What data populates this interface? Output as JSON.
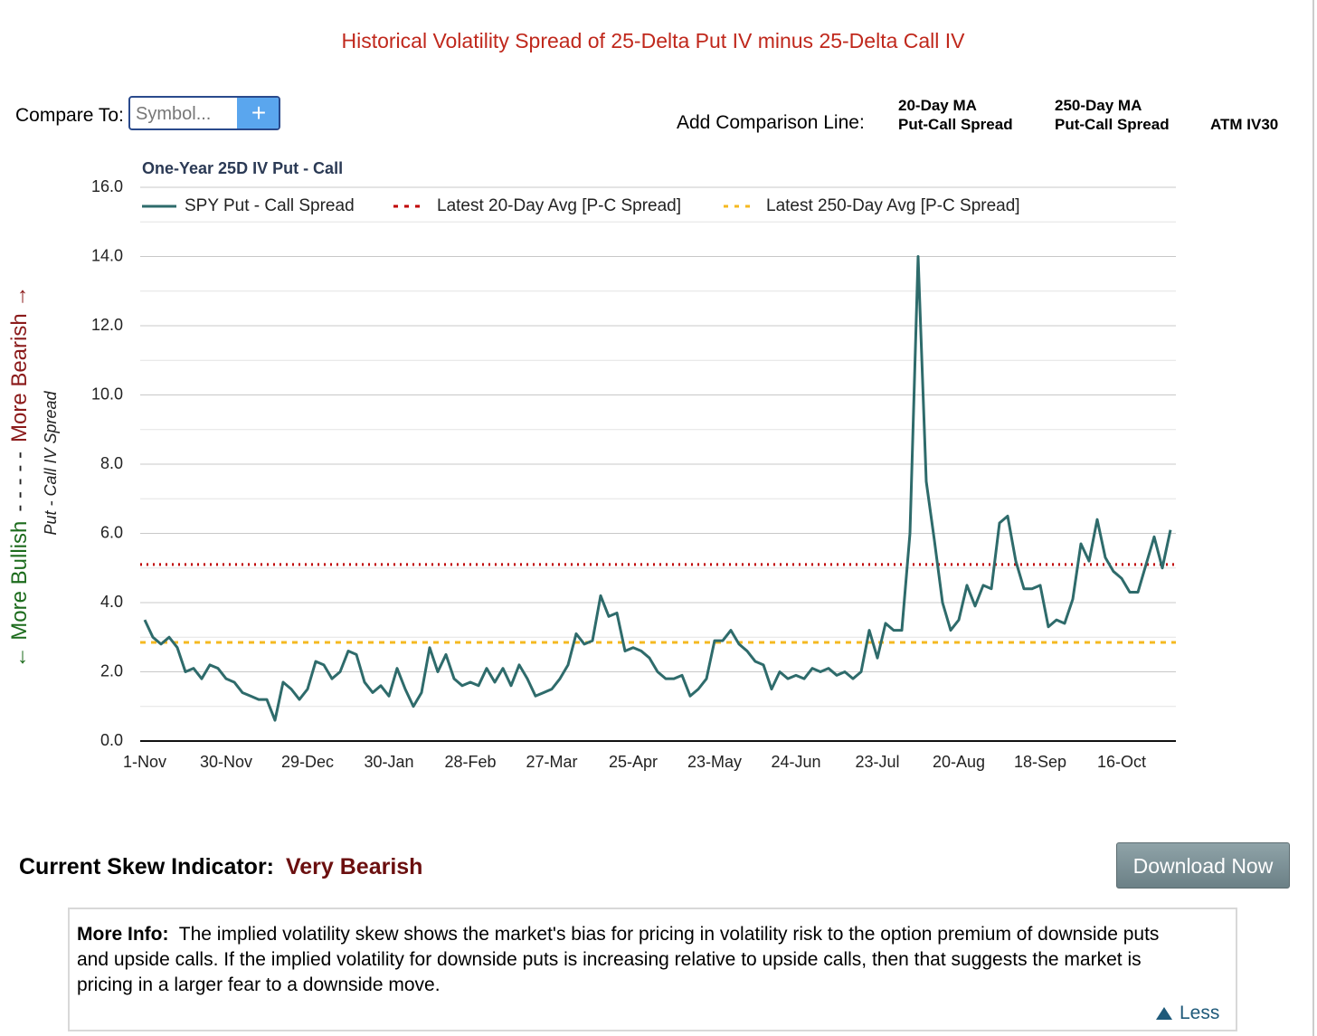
{
  "header": {
    "title": "Historical Volatility Spread of 25-Delta Put IV minus 25-Delta Call IV"
  },
  "controls": {
    "compare_label": "Compare To:",
    "symbol_placeholder": "Symbol...",
    "add_button": "+",
    "comparison_label": "Add Comparison Line:",
    "options": [
      [
        "20-Day MA",
        "Put-Call Spread"
      ],
      [
        "250-Day MA",
        "Put-Call Spread"
      ],
      [
        "ATM IV30"
      ]
    ]
  },
  "chart_data": {
    "type": "line",
    "subtitle": "One-Year 25D IV Put - Call",
    "y_label": "Put - Call IV Spread",
    "side_label": {
      "bullish": "← More Bullish",
      "dashes": "- - - - -",
      "bearish": "More Bearish →"
    },
    "categories": [
      "1-Nov",
      null,
      null,
      null,
      null,
      null,
      null,
      null,
      null,
      null,
      "30-Nov",
      null,
      null,
      null,
      null,
      null,
      null,
      null,
      null,
      null,
      "29-Dec",
      null,
      null,
      null,
      null,
      null,
      null,
      null,
      null,
      null,
      "30-Jan",
      null,
      null,
      null,
      null,
      null,
      null,
      null,
      null,
      null,
      "28-Feb",
      null,
      null,
      null,
      null,
      null,
      null,
      null,
      null,
      null,
      "27-Mar",
      null,
      null,
      null,
      null,
      null,
      null,
      null,
      null,
      null,
      "25-Apr",
      null,
      null,
      null,
      null,
      null,
      null,
      null,
      null,
      null,
      "23-May",
      null,
      null,
      null,
      null,
      null,
      null,
      null,
      null,
      null,
      "24-Jun",
      null,
      null,
      null,
      null,
      null,
      null,
      null,
      null,
      null,
      "23-Jul",
      null,
      null,
      null,
      null,
      null,
      null,
      null,
      null,
      null,
      "20-Aug",
      null,
      null,
      null,
      null,
      null,
      null,
      null,
      null,
      null,
      "18-Sep",
      null,
      null,
      null,
      null,
      null,
      null,
      null,
      null,
      null,
      "16-Oct",
      null,
      null,
      null,
      null,
      null,
      null
    ],
    "series": [
      {
        "name": "SPY Put - Call Spread",
        "color": "#2e6b6b",
        "values": [
          3.5,
          3.0,
          2.8,
          3.0,
          2.7,
          2.0,
          2.1,
          1.8,
          2.2,
          2.1,
          1.8,
          1.7,
          1.4,
          1.3,
          1.2,
          1.2,
          0.6,
          1.7,
          1.5,
          1.2,
          1.5,
          2.3,
          2.2,
          1.8,
          2.0,
          2.6,
          2.5,
          1.7,
          1.4,
          1.6,
          1.3,
          2.1,
          1.5,
          1.0,
          1.4,
          2.7,
          2.0,
          2.5,
          1.8,
          1.6,
          1.7,
          1.6,
          2.1,
          1.7,
          2.1,
          1.6,
          2.2,
          1.8,
          1.3,
          1.4,
          1.5,
          1.8,
          2.2,
          3.1,
          2.8,
          2.9,
          4.2,
          3.6,
          3.7,
          2.6,
          2.7,
          2.6,
          2.4,
          2.0,
          1.8,
          1.8,
          1.9,
          1.3,
          1.5,
          1.8,
          2.9,
          2.9,
          3.2,
          2.8,
          2.6,
          2.3,
          2.2,
          1.5,
          2.0,
          1.8,
          1.9,
          1.8,
          2.1,
          2.0,
          2.1,
          1.9,
          2.0,
          1.8,
          2.0,
          3.2,
          2.4,
          3.4,
          3.2,
          3.2,
          6.0,
          14.0,
          7.5,
          5.8,
          4.0,
          3.2,
          3.5,
          4.5,
          3.9,
          4.5,
          4.4,
          6.3,
          6.5,
          5.2,
          4.4,
          4.4,
          4.5,
          3.3,
          3.5,
          3.4,
          4.1,
          5.7,
          5.2,
          6.4,
          5.3,
          4.9,
          4.7,
          4.3,
          4.3,
          5.1,
          5.9,
          5.0,
          6.1
        ]
      }
    ],
    "reference_lines": [
      {
        "name": "Latest 20-Day Avg [P-C Spread]",
        "color": "#c00000",
        "value": 5.1
      },
      {
        "name": "Latest 250-Day Avg [P-C Spread]",
        "color": "#f5b921",
        "value": 2.85
      }
    ],
    "ylim": [
      0,
      16
    ],
    "yticks": [
      {
        "value": 0,
        "label": "0.0"
      },
      {
        "value": 2,
        "label": "2.0"
      },
      {
        "value": 4,
        "label": "4.0"
      },
      {
        "value": 6,
        "label": "6.0"
      },
      {
        "value": 8,
        "label": "8.0"
      },
      {
        "value": 10,
        "label": "10.0"
      },
      {
        "value": 12,
        "label": "12.0"
      },
      {
        "value": 14,
        "label": "14.0"
      },
      {
        "value": 16,
        "label": "16.0"
      }
    ],
    "minor_yticks": [
      1,
      3,
      5,
      7,
      9,
      11,
      13,
      15
    ],
    "grid": true
  },
  "indicator": {
    "label": "Current Skew Indicator:",
    "value": "Very Bearish"
  },
  "download_button": "Download Now",
  "info": {
    "heading": "More Info:",
    "text": "The implied volatility skew shows the market's bias for pricing in volatility risk to the option premium of downside puts and upside calls. If the implied volatility for downside puts is increasing relative to upside calls, then that suggests the market is pricing in a larger fear to a downside move.",
    "toggle": "Less"
  }
}
